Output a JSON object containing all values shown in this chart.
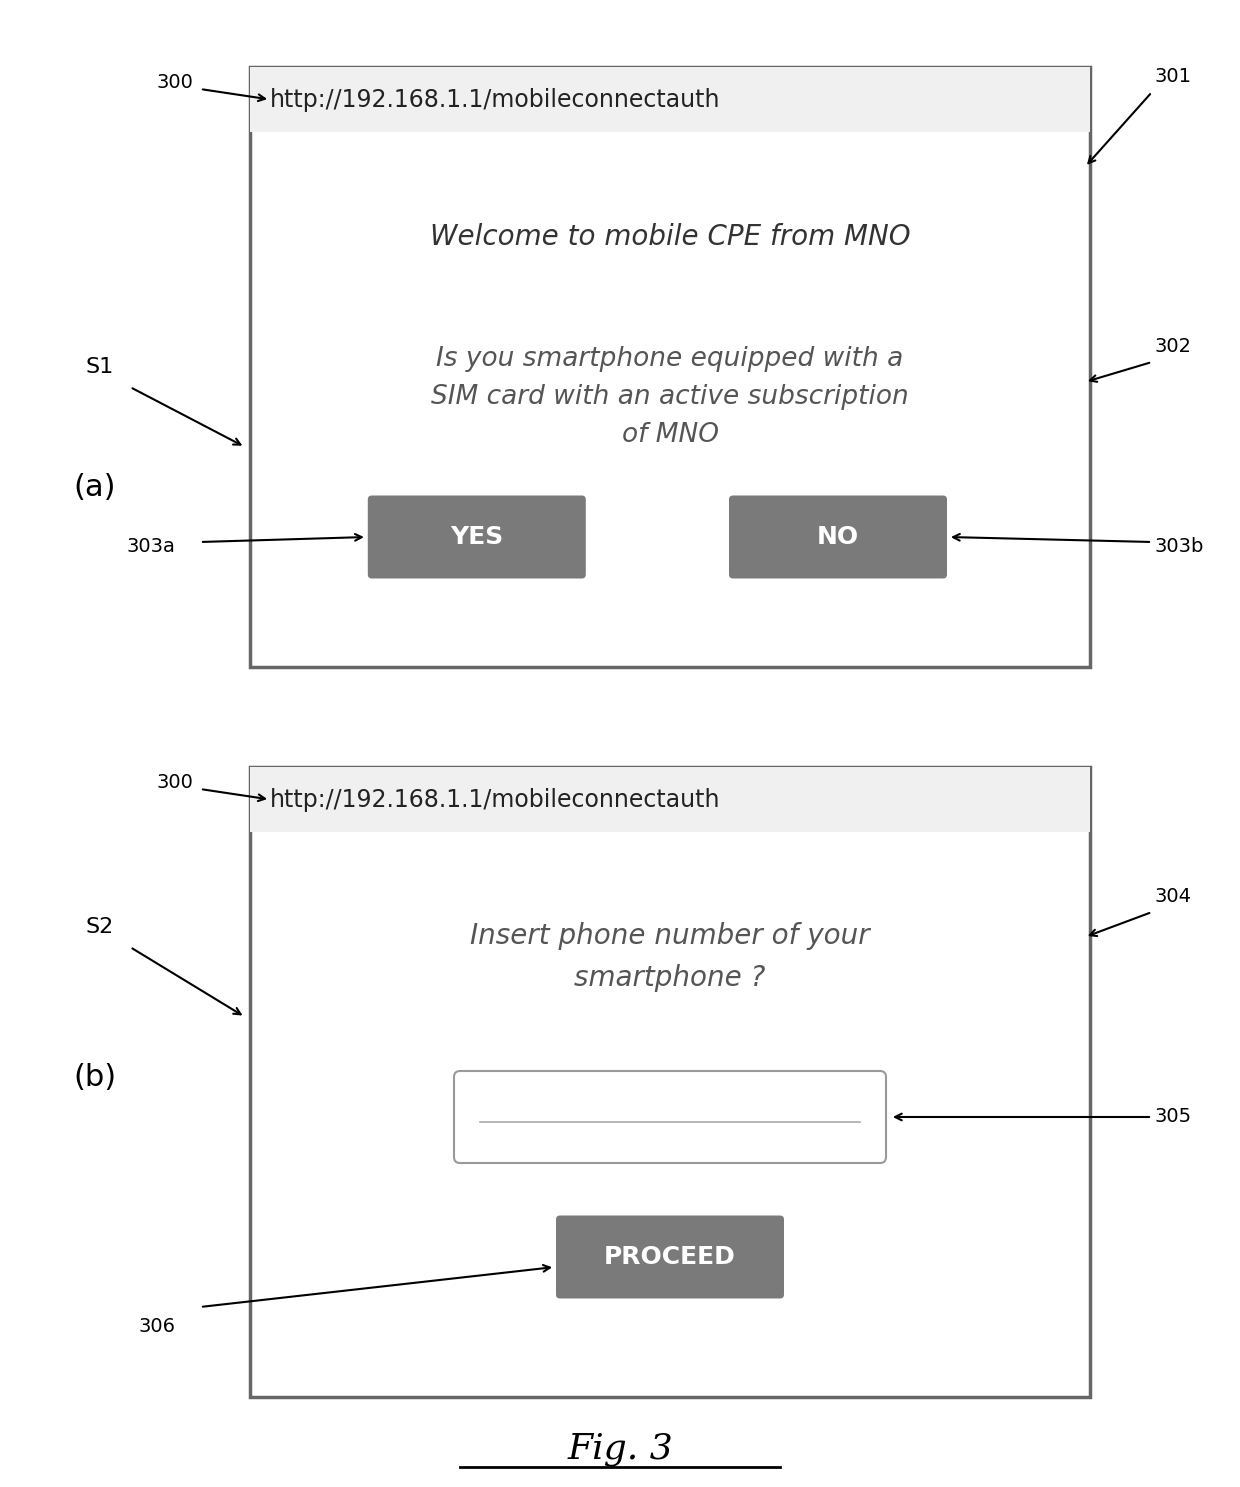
{
  "bg_color": "#ffffff",
  "fig_caption": "Fig. 3",
  "panel_a": {
    "label": "(a)",
    "url_text": "http://192.168.1.1/mobileconnectauth",
    "url_ref": "300",
    "screen_ref": "301",
    "welcome_text": "Welcome to mobile CPE from MNO",
    "question_text": "Is you smartphone equipped with a\nSIM card with an active subscription\nof MNO",
    "question_ref": "302",
    "yes_label": "YES",
    "yes_ref": "303a",
    "no_label": "NO",
    "no_ref": "303b",
    "s_label": "S1",
    "button_color": "#7a7a7a"
  },
  "panel_b": {
    "label": "(b)",
    "url_text": "http://192.168.1.1/mobileconnectauth",
    "url_ref": "300",
    "insert_text": "Insert phone number of your\nsmartphone ?",
    "insert_ref": "304",
    "input_ref": "305",
    "proceed_label": "PROCEED",
    "proceed_ref": "306",
    "s_label": "S2",
    "button_color": "#7a7a7a"
  }
}
